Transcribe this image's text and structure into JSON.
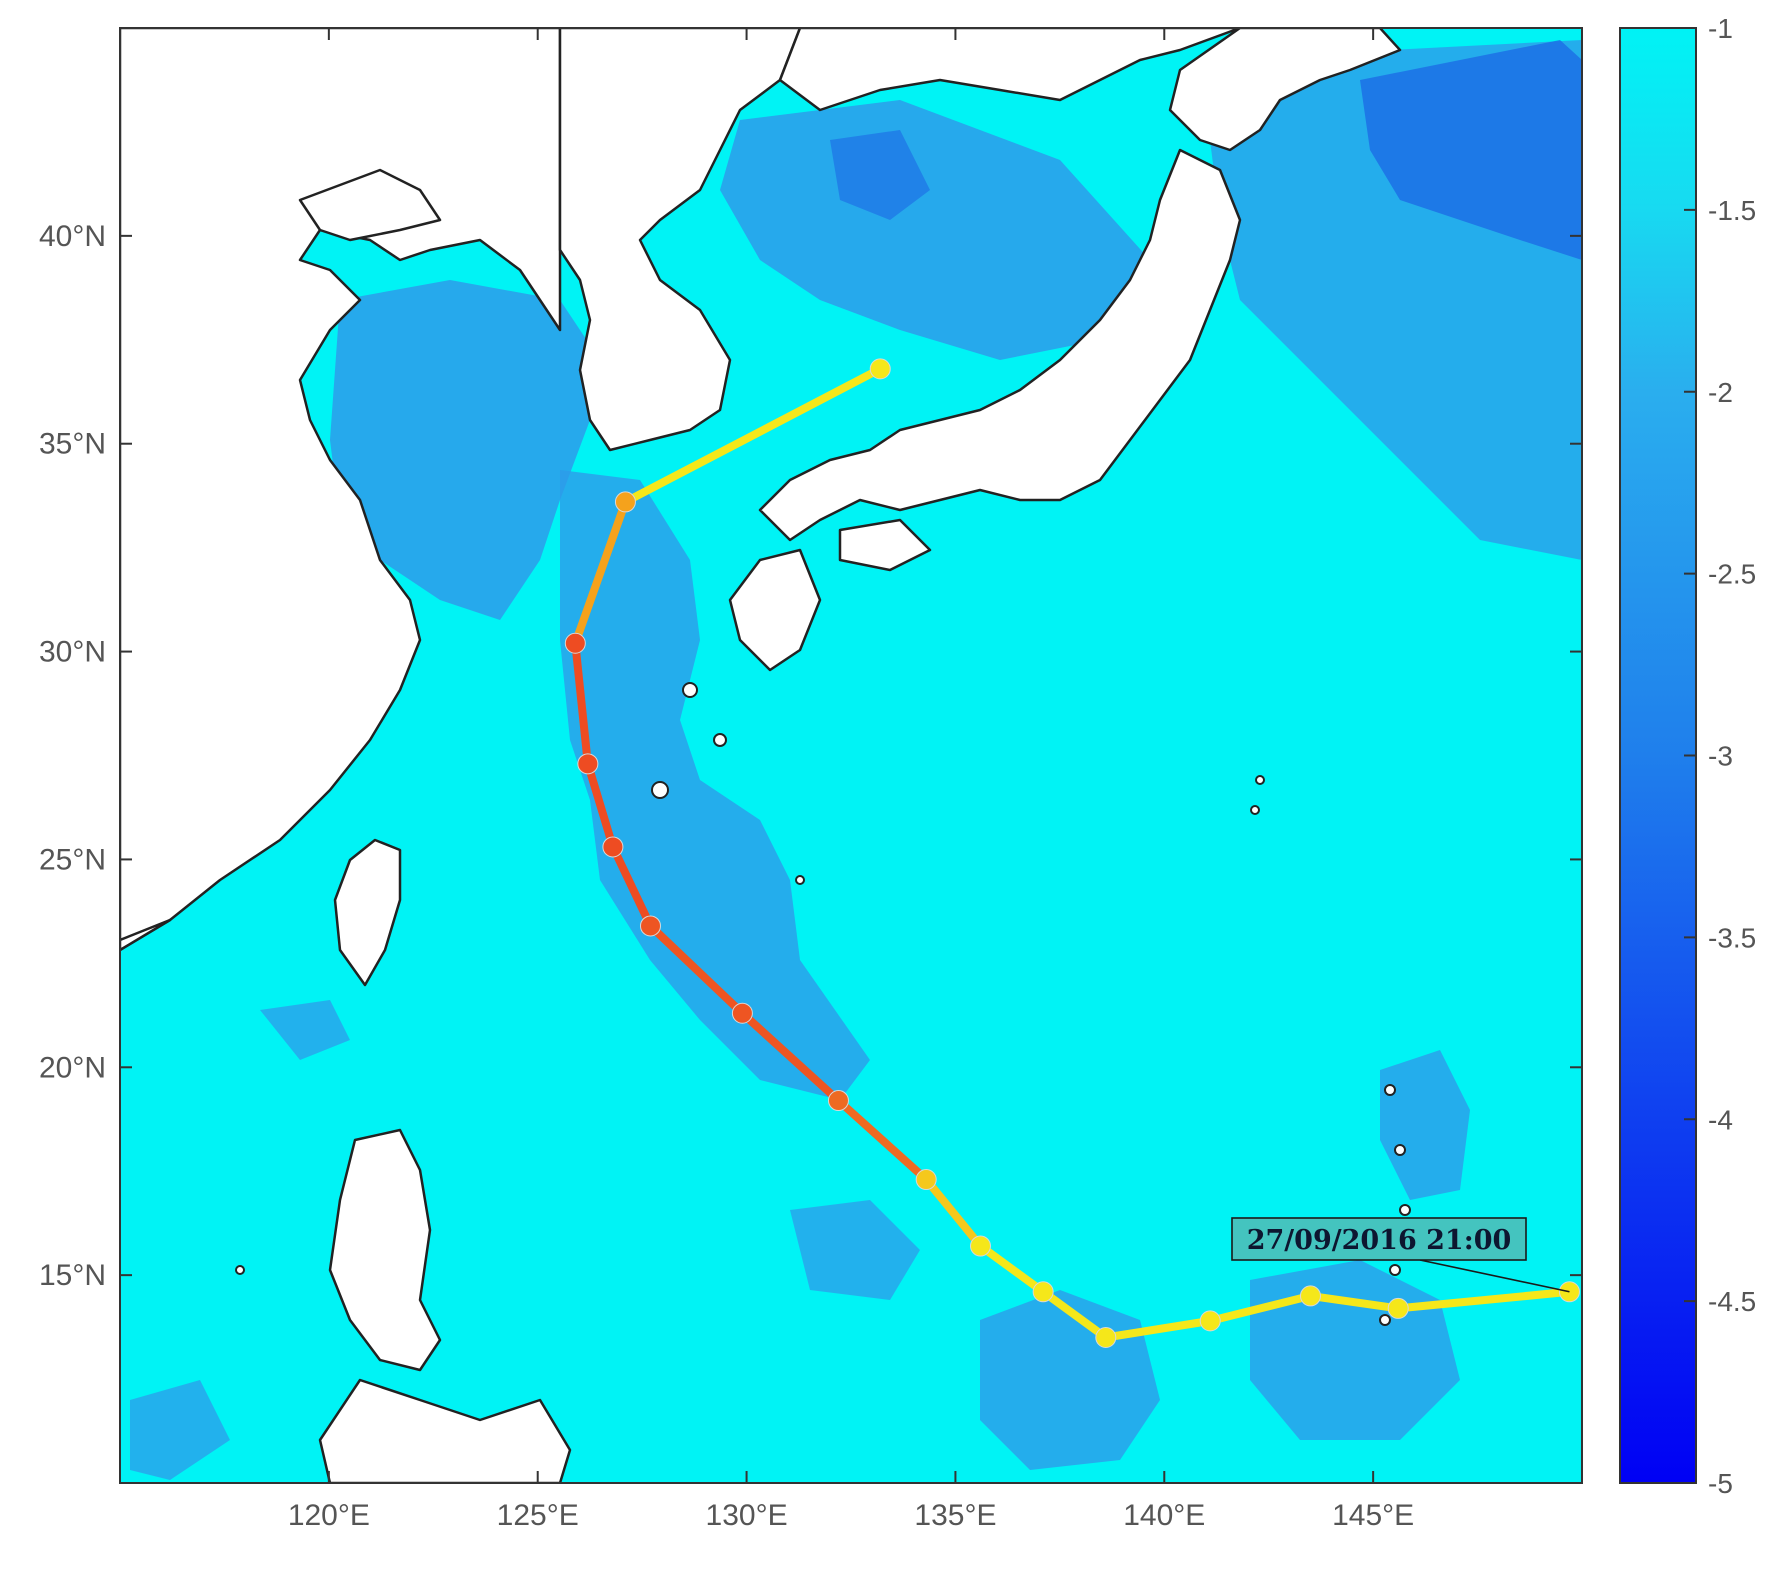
{
  "colors": {
    "ocean": "#00f3f5",
    "ocean_medium": "#28cdee",
    "ocean_dark": "#2d9bea",
    "ocean_deep": "#1b63e6",
    "land": "#ffffff",
    "coast": "#222222",
    "axis": "#333333",
    "tick_text": "#555555",
    "annotation_bg": "#44c4bf"
  },
  "map": {
    "lon_range": [
      115,
      150
    ],
    "lat_range": [
      10,
      45
    ],
    "lon_ticks": [
      {
        "value": 120,
        "label": "120°E"
      },
      {
        "value": 125,
        "label": "125°E"
      },
      {
        "value": 130,
        "label": "130°E"
      },
      {
        "value": 135,
        "label": "135°E"
      },
      {
        "value": 140,
        "label": "140°E"
      },
      {
        "value": 145,
        "label": "145°E"
      }
    ],
    "lat_ticks": [
      {
        "value": 15,
        "label": "15°N"
      },
      {
        "value": 20,
        "label": "20°N"
      },
      {
        "value": 25,
        "label": "25°N"
      },
      {
        "value": 30,
        "label": "30°N"
      },
      {
        "value": 35,
        "label": "35°N"
      },
      {
        "value": 40,
        "label": "40°N"
      }
    ]
  },
  "colorbar": {
    "range": [
      -5,
      -1
    ],
    "ticks": [
      {
        "value": -1,
        "label": "-1"
      },
      {
        "value": -1.5,
        "label": "-1.5"
      },
      {
        "value": -2,
        "label": "-2"
      },
      {
        "value": -2.5,
        "label": "-2.5"
      },
      {
        "value": -3,
        "label": "-3"
      },
      {
        "value": -3.5,
        "label": "-3.5"
      },
      {
        "value": -4,
        "label": "-4"
      },
      {
        "value": -4.5,
        "label": "-4.5"
      },
      {
        "value": -5,
        "label": "-5"
      }
    ]
  },
  "track": {
    "points": [
      {
        "lon": 149.7,
        "lat": 14.6,
        "color": "#f5e71a"
      },
      {
        "lon": 145.6,
        "lat": 14.2,
        "color": "#f5e71a"
      },
      {
        "lon": 143.5,
        "lat": 14.5,
        "color": "#f5e71a"
      },
      {
        "lon": 141.1,
        "lat": 13.9,
        "color": "#f5e71a"
      },
      {
        "lon": 138.6,
        "lat": 13.5,
        "color": "#f5e71a"
      },
      {
        "lon": 137.1,
        "lat": 14.6,
        "color": "#f5e71a"
      },
      {
        "lon": 135.6,
        "lat": 15.7,
        "color": "#f5e71a"
      },
      {
        "lon": 134.3,
        "lat": 17.3,
        "color": "#f5c81c"
      },
      {
        "lon": 132.2,
        "lat": 19.2,
        "color": "#ee6a22"
      },
      {
        "lon": 129.9,
        "lat": 21.3,
        "color": "#ee5522"
      },
      {
        "lon": 127.7,
        "lat": 23.4,
        "color": "#ee5522"
      },
      {
        "lon": 126.8,
        "lat": 25.3,
        "color": "#ee4c22"
      },
      {
        "lon": 126.2,
        "lat": 27.3,
        "color": "#ee4c22"
      },
      {
        "lon": 125.9,
        "lat": 30.2,
        "color": "#ee4c22"
      },
      {
        "lon": 127.1,
        "lat": 33.6,
        "color": "#f5a21c"
      },
      {
        "lon": 133.2,
        "lat": 36.8,
        "color": "#f5e71a"
      }
    ],
    "annotation": {
      "text": "27/09/2016 21:00",
      "lon": 149.7,
      "lat": 14.6
    }
  }
}
